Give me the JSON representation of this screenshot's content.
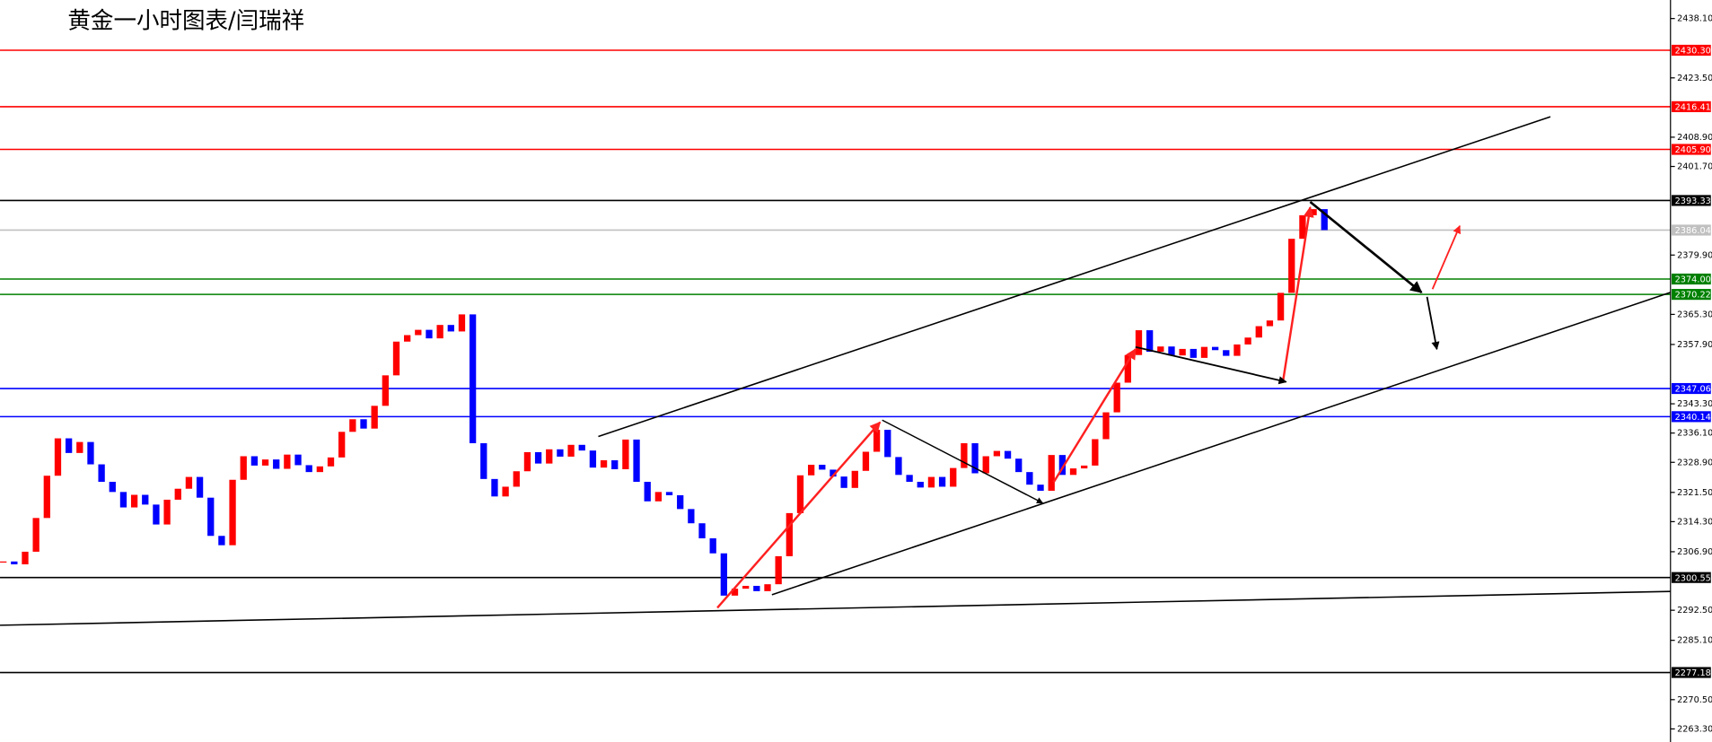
{
  "chart_data": {
    "type": "candlestick",
    "title": "黄金一小时图表/闫瑞祥",
    "up_color": "#ff0000",
    "down_color": "#0000ff",
    "values": [
      2304.5,
      2303.8,
      2306.9,
      2315.2,
      2325.6,
      2334.8,
      2331.2,
      2333.9,
      2328.4,
      2324.1,
      2321.6,
      2317.8,
      2320.9,
      2318.5,
      2313.6,
      2319.7,
      2322.4,
      2325.3,
      2320.2,
      2310.8,
      2308.5,
      2324.6,
      2330.4,
      2328.1,
      2329.6,
      2327.3,
      2330.8,
      2328.2,
      2326.5,
      2327.9,
      2330.1,
      2336.4,
      2339.5,
      2337.2,
      2342.8,
      2350.3,
      2358.6,
      2360.2,
      2361.5,
      2359.4,
      2362.7,
      2361.1,
      2365.3,
      2333.6,
      2324.8,
      2320.5,
      2322.9,
      2326.7,
      2331.4,
      2328.6,
      2332.1,
      2330.3,
      2333.2,
      2331.8,
      2327.6,
      2329.4,
      2327.2,
      2334.5,
      2324.1,
      2319.3,
      2321.6,
      2320.8,
      2317.4,
      2313.9,
      2310.2,
      2306.5,
      2296.1,
      2297.8,
      2298.5,
      2297.2,
      2298.9,
      2305.8,
      2316.4,
      2325.7,
      2328.3,
      2327.1,
      2325.4,
      2322.6,
      2326.8,
      2331.5,
      2336.9,
      2330.2,
      2325.8,
      2324.1,
      2322.7,
      2325.3,
      2322.9,
      2327.5,
      2333.6,
      2326.2,
      2330.4,
      2331.7,
      2329.8,
      2326.5,
      2323.4,
      2321.9,
      2330.7,
      2325.8,
      2327.4,
      2328.1,
      2334.6,
      2341.2,
      2348.5,
      2355.3,
      2361.4,
      2356.1,
      2357.4,
      2355.2,
      2356.8,
      2354.6,
      2357.3,
      2356.5,
      2355.1,
      2357.9,
      2359.6,
      2362.4,
      2363.8,
      2370.6,
      2383.9,
      2389.7,
      2391.2,
      2386.04
    ],
    "ylim": [
      2260.08,
      2442.66
    ],
    "yticks": [
      {
        "value": 2438.1,
        "label": "2438.10"
      },
      {
        "value": 2423.5,
        "label": "2423.50"
      },
      {
        "value": 2408.9,
        "label": "2408.90"
      },
      {
        "value": 2401.7,
        "label": "2401.70"
      },
      {
        "value": 2379.9,
        "label": "2379.90"
      },
      {
        "value": 2365.3,
        "label": "2365.30"
      },
      {
        "value": 2357.9,
        "label": "2357.90"
      },
      {
        "value": 2343.3,
        "label": "2343.30"
      },
      {
        "value": 2336.1,
        "label": "2336.10"
      },
      {
        "value": 2328.9,
        "label": "2328.90"
      },
      {
        "value": 2321.5,
        "label": "2321.50"
      },
      {
        "value": 2314.3,
        "label": "2314.30"
      },
      {
        "value": 2306.9,
        "label": "2306.90"
      },
      {
        "value": 2292.5,
        "label": "2292.50"
      },
      {
        "value": 2285.1,
        "label": "2285.10"
      },
      {
        "value": 2270.5,
        "label": "2270.50"
      },
      {
        "value": 2263.3,
        "label": "2263.30"
      }
    ],
    "levels": [
      {
        "value": 2430.3,
        "label": "2430.30",
        "color": "#ff0000"
      },
      {
        "value": 2416.41,
        "label": "2416.41",
        "color": "#ff0000"
      },
      {
        "value": 2405.9,
        "label": "2405.90",
        "color": "#ff0000"
      },
      {
        "value": 2393.33,
        "label": "2393.33",
        "color": "#000000"
      },
      {
        "value": 2386.04,
        "label": "2386.04",
        "color": "#c0c0c0"
      },
      {
        "value": 2374.0,
        "label": "2374.00",
        "color": "#008000"
      },
      {
        "value": 2370.22,
        "label": "2370.22",
        "color": "#008000"
      },
      {
        "value": 2347.06,
        "label": "2347.06",
        "color": "#0000ff"
      },
      {
        "value": 2340.14,
        "label": "2340.14",
        "color": "#0000ff"
      },
      {
        "value": 2300.55,
        "label": "2300.55",
        "color": "#000000"
      },
      {
        "value": 2277.18,
        "label": "2277.18",
        "color": "#000000"
      }
    ]
  }
}
